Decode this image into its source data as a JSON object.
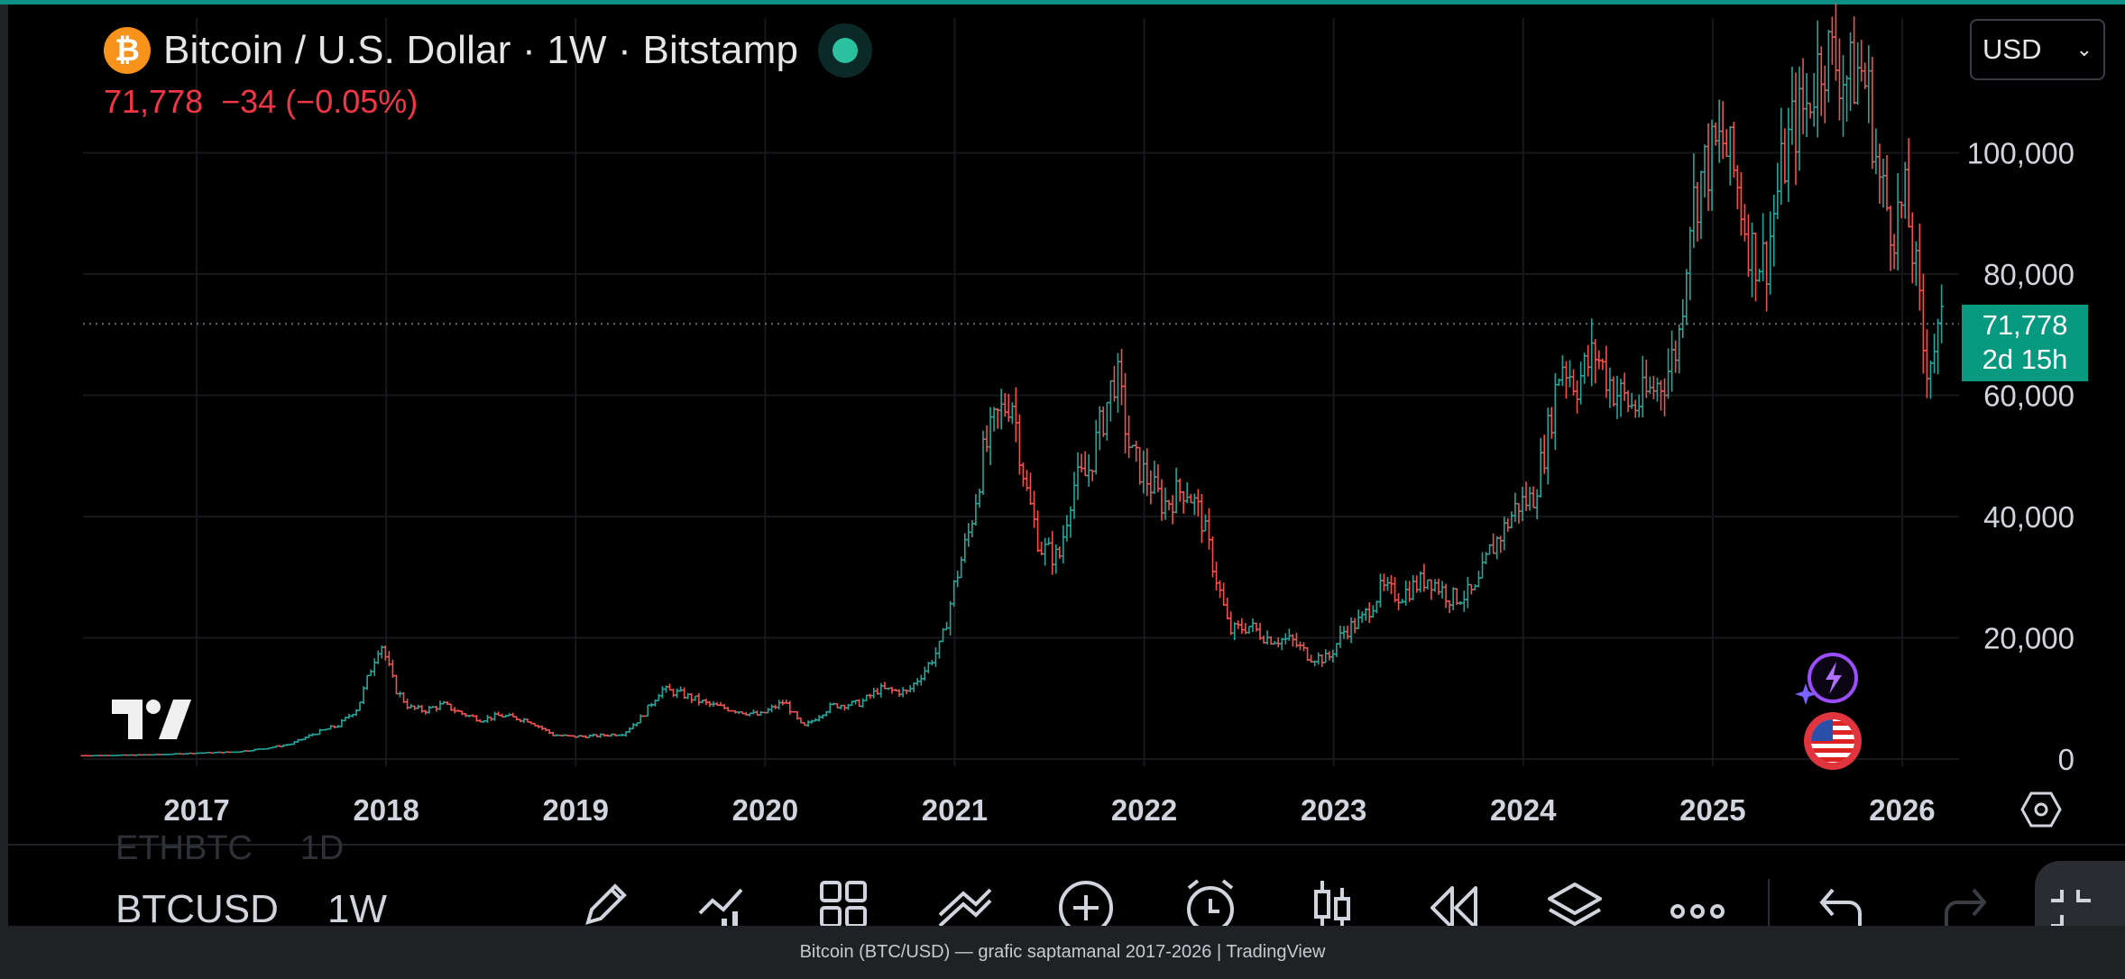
{
  "header": {
    "title": "Bitcoin / U.S. Dollar · 1W · Bitstamp",
    "logo_glyph": "₿",
    "last_price": "71,778",
    "change": "−34 (−0.05%)",
    "currency": "USD"
  },
  "price_tag": {
    "price": "71,778",
    "countdown": "2d 15h"
  },
  "symbol_bar": {
    "prev_symbol": "ETHBTC",
    "prev_interval": "1D",
    "symbol": "BTCUSD",
    "interval": "1W"
  },
  "toolbar": {
    "icons": [
      "pencil-icon",
      "indicators-icon",
      "layout-grid-icon",
      "drawings-icon",
      "add-icon",
      "alert-clock-icon",
      "candles-icon",
      "replay-icon",
      "layers-icon",
      "more-icon",
      "undo-icon",
      "redo-icon"
    ]
  },
  "caption": "Bitcoin (BTC/USD) — grafic saptamanal 2017-2026 | TradingView",
  "colors": {
    "up": "#26a69a",
    "down": "#ef5350",
    "accent": "#089981",
    "negative": "#f23645"
  },
  "chart_data": {
    "type": "candlestick",
    "interval": "1W",
    "x_unit": "year",
    "xlim": [
      2016.4,
      2026.3
    ],
    "ylim": [
      0,
      125000
    ],
    "ticks_x": [
      "2017",
      "2018",
      "2019",
      "2020",
      "2021",
      "2022",
      "2023",
      "2024",
      "2025",
      "2026"
    ],
    "ticks_y": [
      "0",
      "20,000",
      "40,000",
      "60,000",
      "80,000",
      "100,000"
    ],
    "last_price": 71778,
    "grid": true,
    "series": [
      {
        "points": [
          [
            2016.4,
            550
          ],
          [
            2016.6,
            620
          ],
          [
            2016.8,
            720
          ],
          [
            2017.0,
            980
          ],
          [
            2017.2,
            1150
          ],
          [
            2017.35,
            1700
          ],
          [
            2017.5,
            2500
          ],
          [
            2017.62,
            4200
          ],
          [
            2017.75,
            5600
          ],
          [
            2017.85,
            8500
          ],
          [
            2017.92,
            15000
          ],
          [
            2017.97,
            19500
          ],
          [
            2018.05,
            11500
          ],
          [
            2018.12,
            8500
          ],
          [
            2018.2,
            8000
          ],
          [
            2018.3,
            9000
          ],
          [
            2018.4,
            7500
          ],
          [
            2018.5,
            6500
          ],
          [
            2018.6,
            7200
          ],
          [
            2018.75,
            6400
          ],
          [
            2018.88,
            4000
          ],
          [
            2018.97,
            3700
          ],
          [
            2019.1,
            3800
          ],
          [
            2019.25,
            4200
          ],
          [
            2019.35,
            7000
          ],
          [
            2019.45,
            11500
          ],
          [
            2019.55,
            10800
          ],
          [
            2019.7,
            9000
          ],
          [
            2019.85,
            8000
          ],
          [
            2019.97,
            7200
          ],
          [
            2020.1,
            9500
          ],
          [
            2020.2,
            5200
          ],
          [
            2020.35,
            8800
          ],
          [
            2020.5,
            9200
          ],
          [
            2020.6,
            11500
          ],
          [
            2020.75,
            11000
          ],
          [
            2020.85,
            15000
          ],
          [
            2020.93,
            19000
          ],
          [
            2021.0,
            29000
          ],
          [
            2021.08,
            38000
          ],
          [
            2021.15,
            50000
          ],
          [
            2021.22,
            56000
          ],
          [
            2021.3,
            60000
          ],
          [
            2021.38,
            44000
          ],
          [
            2021.45,
            35000
          ],
          [
            2021.55,
            33000
          ],
          [
            2021.62,
            45000
          ],
          [
            2021.7,
            47000
          ],
          [
            2021.78,
            56000
          ],
          [
            2021.85,
            64000
          ],
          [
            2021.93,
            50000
          ],
          [
            2022.0,
            47000
          ],
          [
            2022.1,
            42000
          ],
          [
            2022.22,
            45000
          ],
          [
            2022.3,
            40000
          ],
          [
            2022.38,
            30000
          ],
          [
            2022.45,
            21000
          ],
          [
            2022.55,
            22000
          ],
          [
            2022.65,
            20000
          ],
          [
            2022.78,
            19500
          ],
          [
            2022.87,
            17000
          ],
          [
            2022.97,
            16500
          ],
          [
            2023.05,
            21000
          ],
          [
            2023.15,
            23000
          ],
          [
            2023.25,
            28000
          ],
          [
            2023.35,
            27000
          ],
          [
            2023.5,
            30000
          ],
          [
            2023.62,
            26500
          ],
          [
            2023.75,
            27500
          ],
          [
            2023.82,
            34000
          ],
          [
            2023.9,
            38000
          ],
          [
            2023.97,
            42000
          ],
          [
            2024.05,
            43000
          ],
          [
            2024.12,
            52000
          ],
          [
            2024.2,
            66000
          ],
          [
            2024.28,
            62000
          ],
          [
            2024.38,
            67000
          ],
          [
            2024.48,
            61000
          ],
          [
            2024.58,
            58000
          ],
          [
            2024.65,
            60000
          ],
          [
            2024.75,
            63000
          ],
          [
            2024.82,
            69000
          ],
          [
            2024.88,
            90000
          ],
          [
            2024.95,
            97000
          ],
          [
            2025.05,
            102000
          ],
          [
            2025.12,
            96000
          ],
          [
            2025.2,
            84000
          ],
          [
            2025.28,
            82000
          ],
          [
            2025.35,
            95000
          ],
          [
            2025.42,
            104000
          ],
          [
            2025.5,
            108000
          ],
          [
            2025.58,
            117000
          ],
          [
            2025.65,
            115000
          ],
          [
            2025.72,
            112000
          ],
          [
            2025.78,
            114000
          ],
          [
            2025.82,
            110000
          ],
          [
            2025.88,
            95000
          ],
          [
            2025.95,
            88000
          ],
          [
            2026.02,
            92000
          ],
          [
            2026.08,
            78000
          ],
          [
            2026.12,
            65000
          ],
          [
            2026.18,
            69000
          ],
          [
            2026.22,
            71778
          ]
        ]
      }
    ]
  }
}
